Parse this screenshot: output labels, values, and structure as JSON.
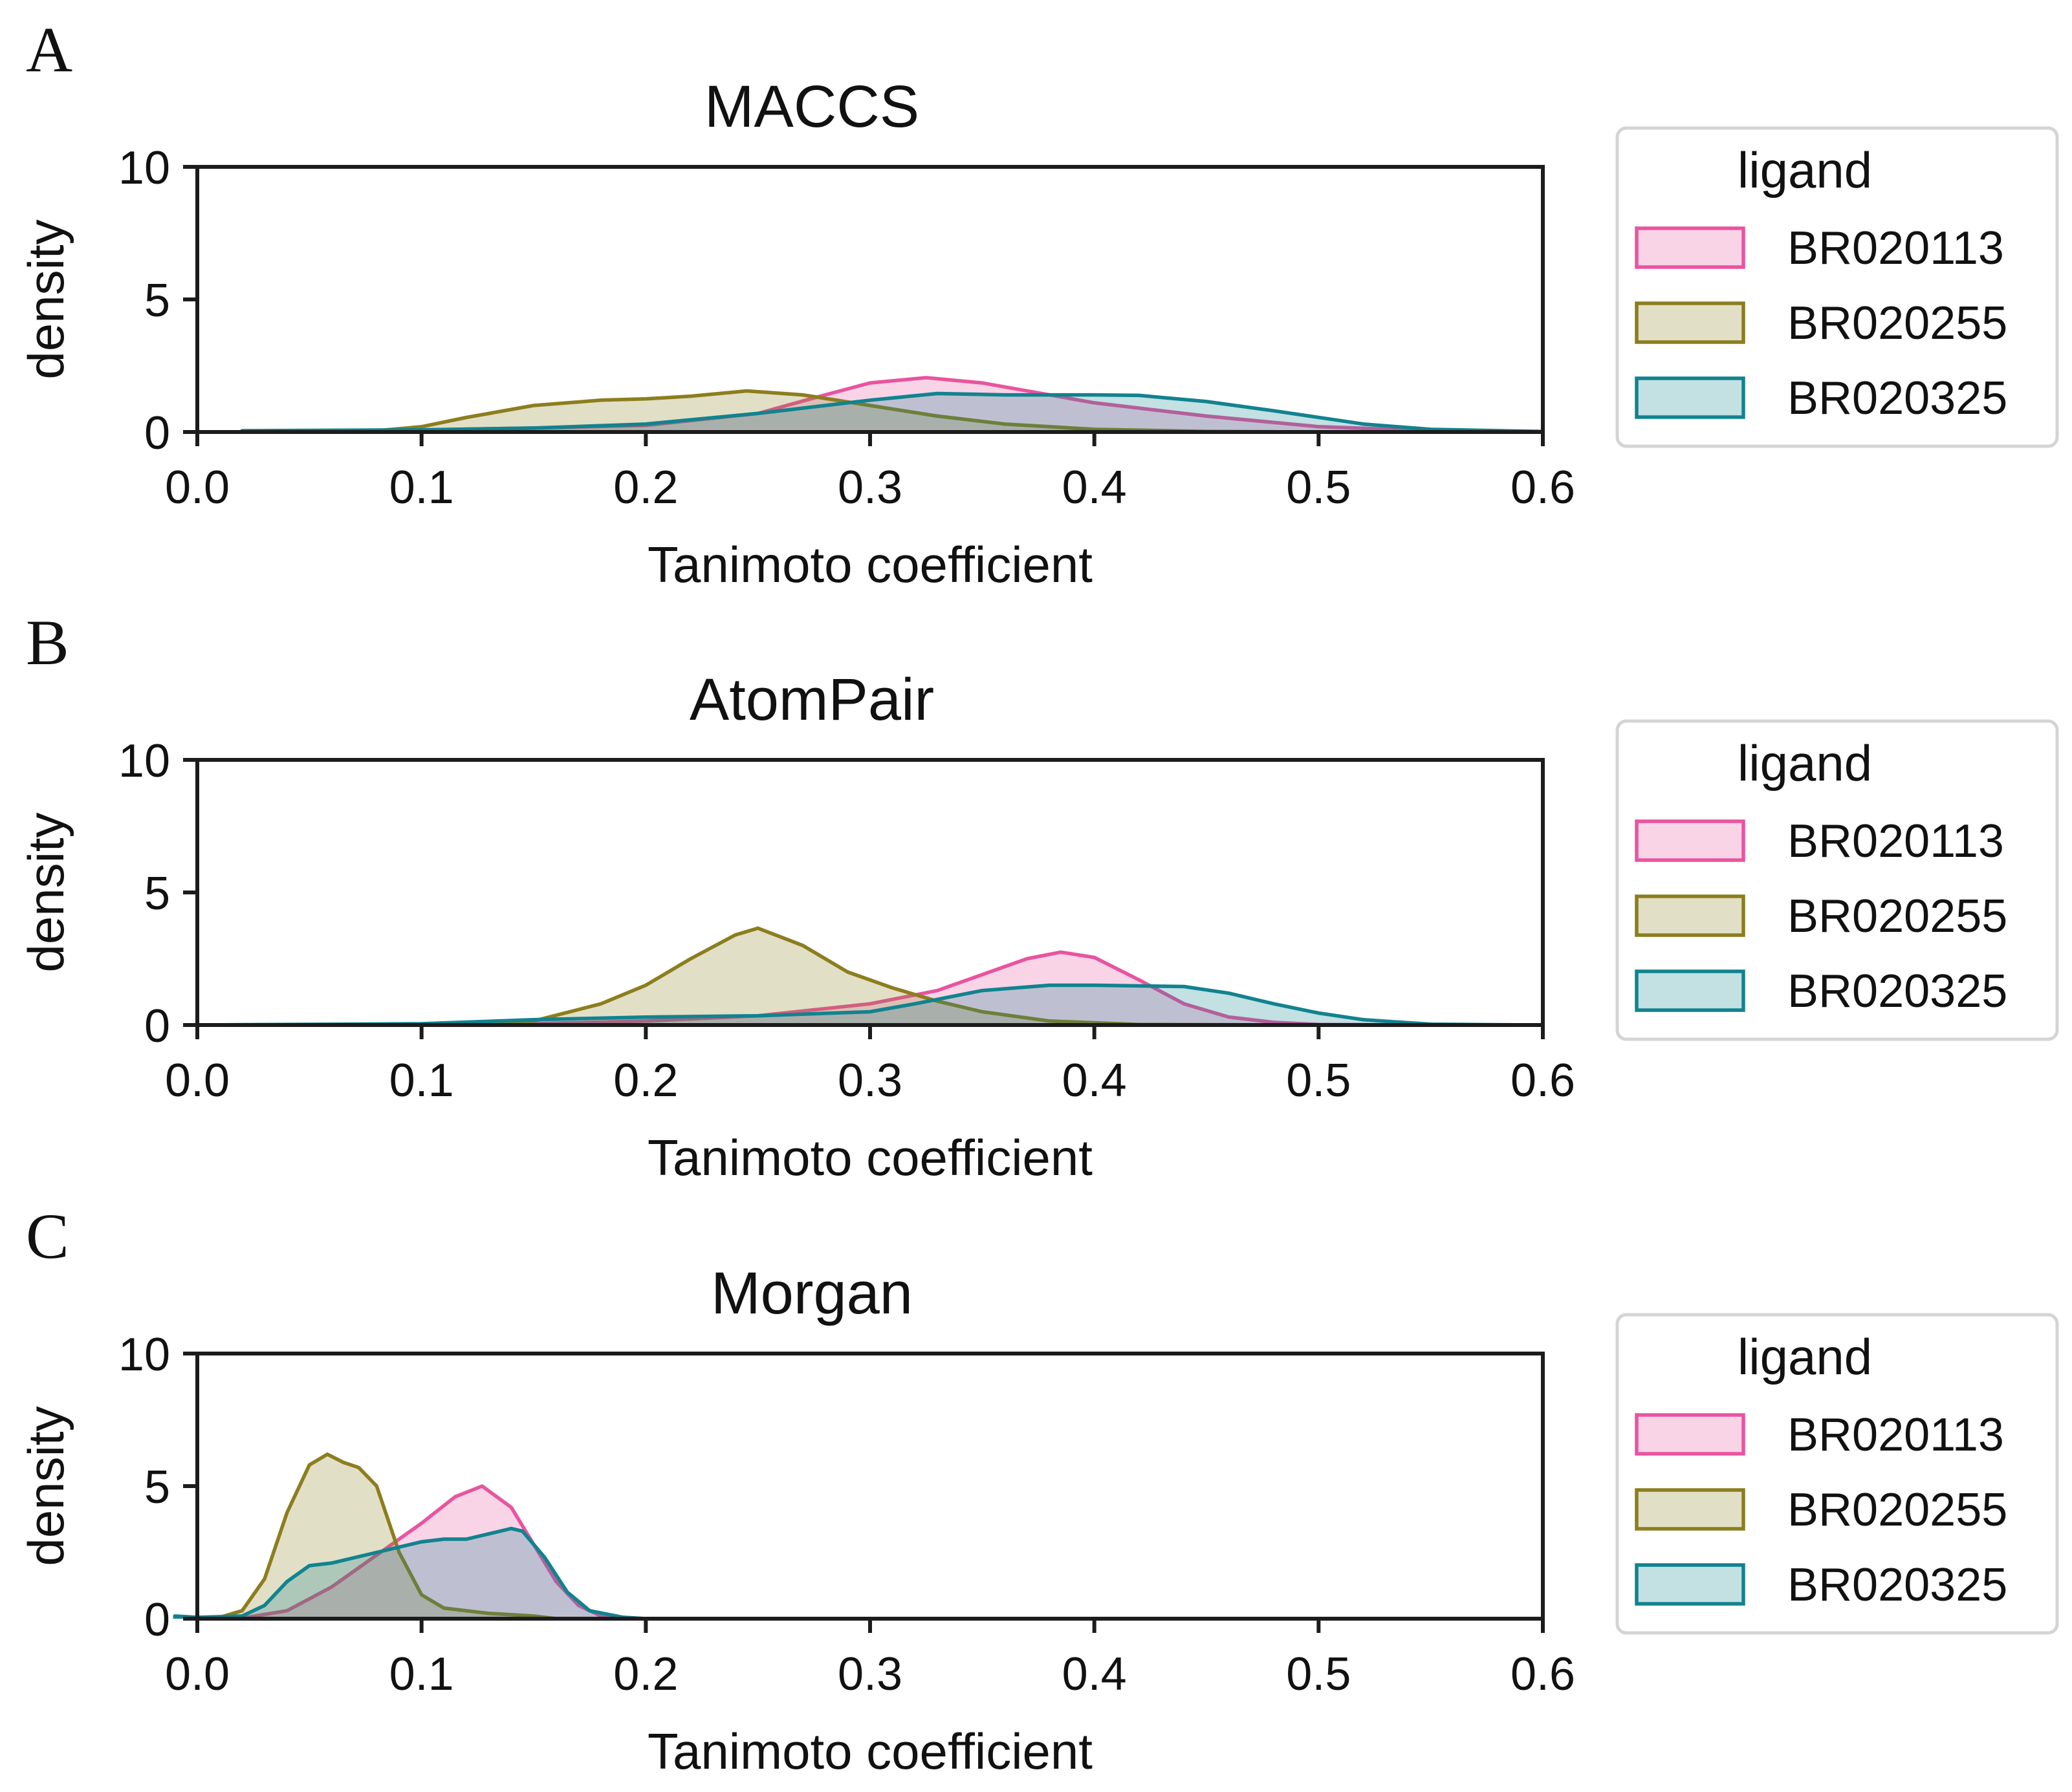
{
  "chart_data": [
    {
      "panel": "A",
      "type": "area",
      "title": "MACCS",
      "xlabel": "Tanimoto coefficient",
      "ylabel": "density",
      "xlim": [
        0.0,
        0.6
      ],
      "ylim": [
        0,
        10
      ],
      "xticks": [
        "0.0",
        "0.1",
        "0.2",
        "0.3",
        "0.4",
        "0.5",
        "0.6"
      ],
      "yticks": [
        "0",
        "5",
        "10"
      ],
      "legend_title": "ligand",
      "series": [
        {
          "name": "BR020113",
          "color": "#e8549f",
          "x": [
            0.02,
            0.05,
            0.1,
            0.15,
            0.2,
            0.25,
            0.28,
            0.3,
            0.325,
            0.35,
            0.38,
            0.4,
            0.45,
            0.5,
            0.55,
            0.6
          ],
          "y": [
            0.0,
            0.02,
            0.08,
            0.15,
            0.25,
            0.7,
            1.4,
            1.85,
            2.05,
            1.85,
            1.4,
            1.1,
            0.6,
            0.2,
            0.05,
            0.0
          ]
        },
        {
          "name": "BR020255",
          "color": "#8c7e1e",
          "x": [
            0.02,
            0.05,
            0.08,
            0.1,
            0.12,
            0.15,
            0.18,
            0.2,
            0.22,
            0.245,
            0.27,
            0.3,
            0.33,
            0.36,
            0.4,
            0.45,
            0.5,
            0.55,
            0.6
          ],
          "y": [
            0.0,
            0.01,
            0.05,
            0.2,
            0.55,
            1.0,
            1.2,
            1.25,
            1.35,
            1.55,
            1.4,
            1.0,
            0.6,
            0.3,
            0.1,
            0.02,
            0.0,
            0.0,
            0.0
          ]
        },
        {
          "name": "BR020325",
          "color": "#11838f",
          "x": [
            0.02,
            0.1,
            0.15,
            0.2,
            0.25,
            0.3,
            0.33,
            0.36,
            0.4,
            0.42,
            0.45,
            0.48,
            0.52,
            0.55,
            0.6
          ],
          "y": [
            0.05,
            0.08,
            0.15,
            0.3,
            0.7,
            1.2,
            1.45,
            1.4,
            1.4,
            1.38,
            1.15,
            0.8,
            0.3,
            0.1,
            0.02
          ]
        }
      ]
    },
    {
      "panel": "B",
      "type": "area",
      "title": "AtomPair",
      "xlabel": "Tanimoto coefficient",
      "ylabel": "density",
      "xlim": [
        0.0,
        0.6
      ],
      "ylim": [
        0,
        10
      ],
      "xticks": [
        "0.0",
        "0.1",
        "0.2",
        "0.3",
        "0.4",
        "0.5",
        "0.6"
      ],
      "yticks": [
        "0",
        "5",
        "10"
      ],
      "legend_title": "ligand",
      "series": [
        {
          "name": "BR020113",
          "color": "#e8549f",
          "x": [
            0.0,
            0.1,
            0.15,
            0.2,
            0.25,
            0.3,
            0.33,
            0.35,
            0.37,
            0.385,
            0.4,
            0.42,
            0.44,
            0.46,
            0.48,
            0.5,
            0.55,
            0.6
          ],
          "y": [
            0.0,
            0.02,
            0.05,
            0.15,
            0.35,
            0.8,
            1.3,
            1.9,
            2.5,
            2.75,
            2.55,
            1.7,
            0.8,
            0.3,
            0.1,
            0.02,
            0.0,
            0.0
          ]
        },
        {
          "name": "BR020255",
          "color": "#8c7e1e",
          "x": [
            0.0,
            0.1,
            0.15,
            0.18,
            0.2,
            0.22,
            0.24,
            0.25,
            0.27,
            0.29,
            0.31,
            0.33,
            0.35,
            0.38,
            0.42,
            0.5,
            0.6
          ],
          "y": [
            0.0,
            0.01,
            0.15,
            0.8,
            1.5,
            2.5,
            3.4,
            3.65,
            3.0,
            2.0,
            1.4,
            0.9,
            0.5,
            0.15,
            0.02,
            0.0,
            0.0
          ]
        },
        {
          "name": "BR020325",
          "color": "#11838f",
          "x": [
            0.0,
            0.1,
            0.15,
            0.2,
            0.25,
            0.3,
            0.32,
            0.35,
            0.38,
            0.4,
            0.44,
            0.46,
            0.48,
            0.5,
            0.52,
            0.55,
            0.6
          ],
          "y": [
            0.0,
            0.05,
            0.2,
            0.3,
            0.35,
            0.5,
            0.8,
            1.3,
            1.5,
            1.5,
            1.45,
            1.2,
            0.8,
            0.45,
            0.2,
            0.03,
            0.0
          ]
        }
      ]
    },
    {
      "panel": "C",
      "type": "area",
      "title": "Morgan",
      "xlabel": "Tanimoto coefficient",
      "ylabel": "density",
      "xlim": [
        0.0,
        0.6
      ],
      "ylim": [
        0,
        10
      ],
      "xticks": [
        "0.0",
        "0.1",
        "0.2",
        "0.3",
        "0.4",
        "0.5",
        "0.6"
      ],
      "yticks": [
        "0",
        "5",
        "10"
      ],
      "legend_title": "ligand",
      "series": [
        {
          "name": "BR020113",
          "color": "#e8549f",
          "x": [
            0.0,
            0.02,
            0.04,
            0.06,
            0.08,
            0.1,
            0.115,
            0.127,
            0.14,
            0.15,
            0.16,
            0.17,
            0.18,
            0.2,
            0.6
          ],
          "y": [
            0.0,
            0.02,
            0.3,
            1.2,
            2.4,
            3.6,
            4.6,
            5.0,
            4.2,
            2.8,
            1.4,
            0.5,
            0.1,
            0.0,
            0.0
          ]
        },
        {
          "name": "BR020255",
          "color": "#8c7e1e",
          "x": [
            0.0,
            0.01,
            0.02,
            0.03,
            0.04,
            0.05,
            0.058,
            0.065,
            0.072,
            0.08,
            0.09,
            0.1,
            0.11,
            0.13,
            0.15,
            0.16,
            0.2,
            0.6
          ],
          "y": [
            0.0,
            0.05,
            0.3,
            1.5,
            4.0,
            5.8,
            6.2,
            5.9,
            5.7,
            5.0,
            2.5,
            0.9,
            0.4,
            0.2,
            0.1,
            0.0,
            0.0,
            0.0
          ]
        },
        {
          "name": "BR020325",
          "color": "#11838f",
          "x": [
            -0.01,
            0.0,
            0.02,
            0.03,
            0.04,
            0.05,
            0.06,
            0.08,
            0.1,
            0.11,
            0.12,
            0.13,
            0.14,
            0.145,
            0.155,
            0.165,
            0.175,
            0.19,
            0.2,
            0.6
          ],
          "y": [
            0.1,
            0.05,
            0.1,
            0.5,
            1.4,
            2.0,
            2.1,
            2.5,
            2.9,
            3.0,
            3.0,
            3.2,
            3.4,
            3.3,
            2.3,
            1.0,
            0.3,
            0.05,
            0.0,
            0.0
          ]
        }
      ]
    }
  ]
}
